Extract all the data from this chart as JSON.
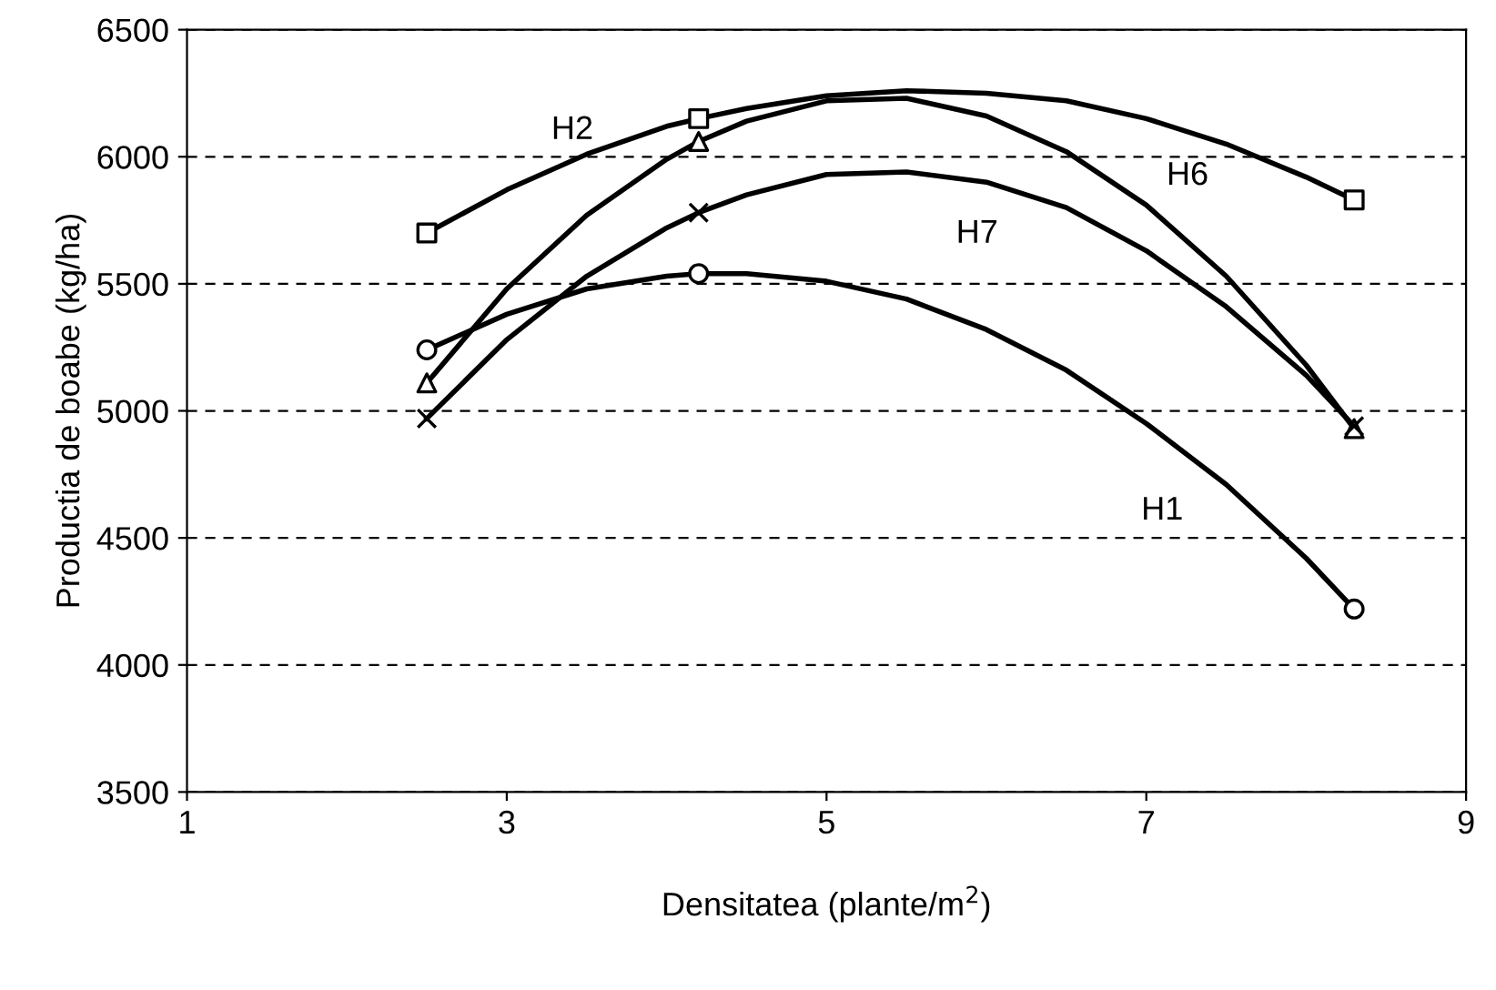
{
  "chart_data": {
    "type": "line",
    "xlabel": "Densitatea (plante/m$^{2}$)",
    "ylabel": "Productia de boabe (kg/ha)",
    "x": [
      2.5,
      3,
      3.5,
      4,
      4.2,
      4.5,
      5,
      5.5,
      6,
      6.5,
      7,
      7.5,
      8,
      8.3
    ],
    "series": [
      {
        "name": "H2",
        "color": "#000000",
        "marker": "none",
        "values": [
          5700,
          5870,
          6010,
          6120,
          6150,
          6190,
          6240,
          6260,
          6250,
          6220,
          6150,
          6050,
          5920,
          5830
        ]
      },
      {
        "name": "H6",
        "color": "#000000",
        "marker": "none",
        "values": [
          5110,
          5480,
          5770,
          5990,
          6060,
          6140,
          6220,
          6230,
          6160,
          6020,
          5810,
          5530,
          5180,
          4930
        ]
      },
      {
        "name": "H7",
        "color": "#000000",
        "marker": "none",
        "values": [
          4970,
          5280,
          5530,
          5720,
          5780,
          5850,
          5930,
          5940,
          5900,
          5800,
          5630,
          5410,
          5140,
          4940
        ]
      },
      {
        "name": "H1",
        "color": "#000000",
        "marker": "none",
        "values": [
          5240,
          5380,
          5480,
          5530,
          5540,
          5540,
          5510,
          5440,
          5320,
          5160,
          4950,
          4710,
          4420,
          4220
        ]
      },
      {
        "type": "scatter",
        "color": "#000000",
        "marker": "square",
        "x": [
          2.5,
          4.2,
          8.3
        ],
        "values": [
          5700,
          6150,
          5830
        ]
      },
      {
        "type": "scatter",
        "color": "#000000",
        "marker": "triangle",
        "x": [
          2.5,
          4.2,
          8.3
        ],
        "values": [
          5110,
          6060,
          4930
        ]
      },
      {
        "type": "scatter",
        "color": "#000000",
        "marker": "cross",
        "x": [
          2.5,
          4.2,
          8.3
        ],
        "values": [
          4970,
          5780,
          4940
        ]
      },
      {
        "type": "scatter",
        "color": "#000000",
        "marker": "circle",
        "x": [
          2.5,
          4.2,
          8.3
        ],
        "values": [
          5240,
          5540,
          4220
        ]
      }
    ],
    "xlim": [
      1,
      9
    ],
    "xticks": [
      1,
      3,
      5,
      7,
      9
    ],
    "ylim": [
      3500,
      6500
    ],
    "yticks": [
      3500,
      4000,
      4500,
      5000,
      5500,
      6000,
      6500
    ],
    "grid": "y",
    "legend": false,
    "line_style": "solid"
  }
}
